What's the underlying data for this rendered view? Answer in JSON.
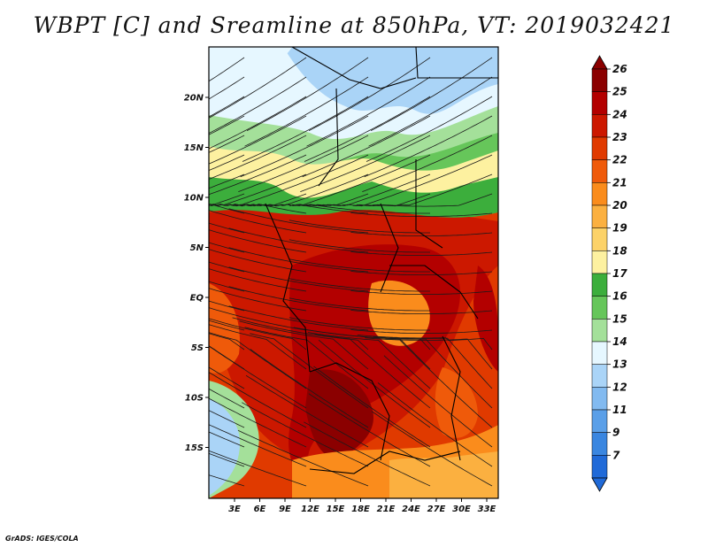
{
  "title": "WBPT [C] and Sreamline at 850hPa, VT: 2019032421",
  "credit": "GrADS: IGES/COLA",
  "map": {
    "lat_ticks": [
      "20N",
      "15N",
      "10N",
      "5N",
      "EQ",
      "5S",
      "10S",
      "15S"
    ],
    "lon_ticks": [
      "3E",
      "6E",
      "9E",
      "12E",
      "15E",
      "18E",
      "21E",
      "24E",
      "27E",
      "30E",
      "33E"
    ]
  },
  "colorbar": {
    "labels": [
      "26",
      "25",
      "24",
      "23",
      "22",
      "21",
      "20",
      "19",
      "18",
      "17",
      "16",
      "15",
      "14",
      "13",
      "12",
      "11",
      "9",
      "7"
    ],
    "colors": [
      "#8b0000",
      "#b30000",
      "#cc1800",
      "#e03a00",
      "#ef5a0a",
      "#fa8c1c",
      "#fbb040",
      "#fcd268",
      "#fdf1a0",
      "#3cae3c",
      "#66c65a",
      "#a4e09a",
      "#e6f7ff",
      "#aad4f7",
      "#82baf0",
      "#5a9fe8",
      "#3a86e0",
      "#206ad8"
    ]
  }
}
